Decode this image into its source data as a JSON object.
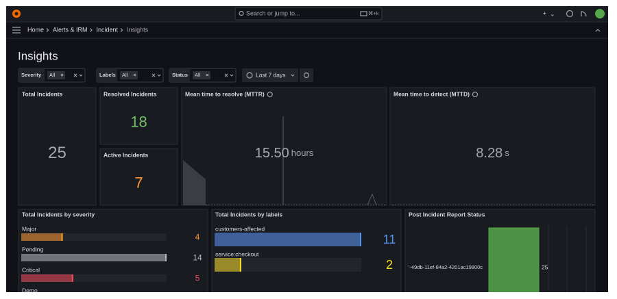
{
  "topbar": {
    "search": "Search or jump to...",
    "shortcut": "⌘+k"
  },
  "breadcrumbs": [
    "Home",
    "Alerts & IRM",
    "Incident",
    "Insights"
  ],
  "title": "Insights",
  "filters": [
    {
      "label": "Severity",
      "value": "All"
    },
    {
      "label": "Labels",
      "value": "All"
    },
    {
      "label": "Status",
      "value": "All"
    }
  ],
  "time_range": "Last 7 days",
  "stats": [
    {
      "title": "Total Incidents",
      "value": 25,
      "color": "#a6a7ae"
    },
    {
      "title": "Resolved Incidents",
      "value": 18,
      "color": "#73bf69"
    },
    {
      "title": "Active Incidents",
      "value": 7,
      "color": "#ff9830"
    },
    {
      "title": "Mean time to resolve (MTTR)",
      "value": "15.50",
      "unit": "hours",
      "color": "#a6a7ae"
    },
    {
      "title": "Mean time to detect (MTTD)",
      "value": "8.28",
      "unit": "s",
      "color": "#a6a7ae"
    }
  ],
  "severity_panel": {
    "title": "Total Incidents by severity",
    "rows": [
      {
        "label": "Major",
        "value": 4,
        "color": "#ff9830"
      },
      {
        "label": "Pending",
        "value": 14,
        "color": "#b4b5ba"
      },
      {
        "label": "Critical",
        "value": 5,
        "color": "#f2495c"
      },
      {
        "label": "Demo"
      }
    ]
  },
  "labels_panel": {
    "title": "Total Incidents by labels",
    "rows": [
      {
        "label": "customers-affected",
        "value": 11,
        "color": "#5794f2"
      },
      {
        "label": "service:checkout",
        "value": 2,
        "color": "#fade2a"
      }
    ]
  },
  "pir_panel": {
    "title": "Post Incident Report Status",
    "bars": [
      {
        "label": "'-49db-11ef-84a2-4201ac19800c",
        "value": 25,
        "color": "#56a64b"
      }
    ]
  }
}
